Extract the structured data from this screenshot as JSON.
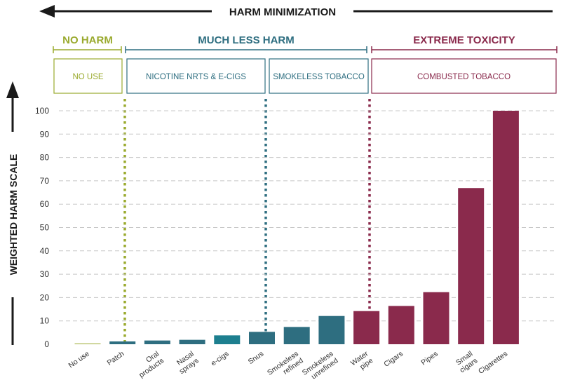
{
  "colors": {
    "green": "#9aaa2e",
    "teal": "#2e6e80",
    "teal_bright": "#1d7f8f",
    "maroon": "#8a2a4c",
    "black": "#1a1a1a"
  },
  "top_arrow_label": "HARM MINIMIZATION",
  "groups": [
    {
      "label": "NO HARM",
      "color": "green"
    },
    {
      "label": "MUCH LESS HARM",
      "color": "teal"
    },
    {
      "label": "EXTREME TOXICITY",
      "color": "maroon"
    }
  ],
  "boxes": [
    {
      "label": "NO USE",
      "color": "green"
    },
    {
      "label": "NICOTINE NRTS & E-CIGS",
      "color": "teal"
    },
    {
      "label": "SMOKELESS TOBACCO",
      "color": "teal"
    },
    {
      "label": "COMBUSTED TOBACCO",
      "color": "maroon"
    }
  ],
  "chart_data": {
    "type": "bar",
    "title": "",
    "xlabel": "",
    "ylabel": "WEIGHTED HARM SCALE",
    "ylim": [
      0,
      100
    ],
    "yticks": [
      0,
      10,
      20,
      30,
      40,
      50,
      60,
      70,
      80,
      90,
      100
    ],
    "grid": "horizontal dashed",
    "categories": [
      "No use",
      "Patch",
      "Oral products",
      "Nasal sprays",
      "e-cigs",
      "Snus",
      "Smokeless refined",
      "Smokeless unrefined",
      "Water pipe",
      "Cigars",
      "Pipes",
      "Small cigars",
      "Cigarettes"
    ],
    "category_lines": [
      [
        "No use"
      ],
      [
        "Patch"
      ],
      [
        "Oral",
        "products"
      ],
      [
        "Nasal",
        "sprays"
      ],
      [
        "e-cigs"
      ],
      [
        "Snus"
      ],
      [
        "Smokeless",
        "refined"
      ],
      [
        "Smokeless",
        "unrefined"
      ],
      [
        "Water",
        "pipe"
      ],
      [
        "Cigars"
      ],
      [
        "Pipes"
      ],
      [
        "Small",
        "cigars"
      ],
      [
        "Cigarettes"
      ]
    ],
    "values": [
      0.3,
      1.2,
      1.6,
      1.9,
      3.8,
      5.3,
      7.4,
      12.1,
      14.2,
      16.4,
      22.3,
      66.9,
      100
    ],
    "bar_colors": [
      "green",
      "teal",
      "teal",
      "teal",
      "teal_bright",
      "teal",
      "teal",
      "teal",
      "maroon",
      "maroon",
      "maroon",
      "maroon",
      "maroon"
    ]
  }
}
